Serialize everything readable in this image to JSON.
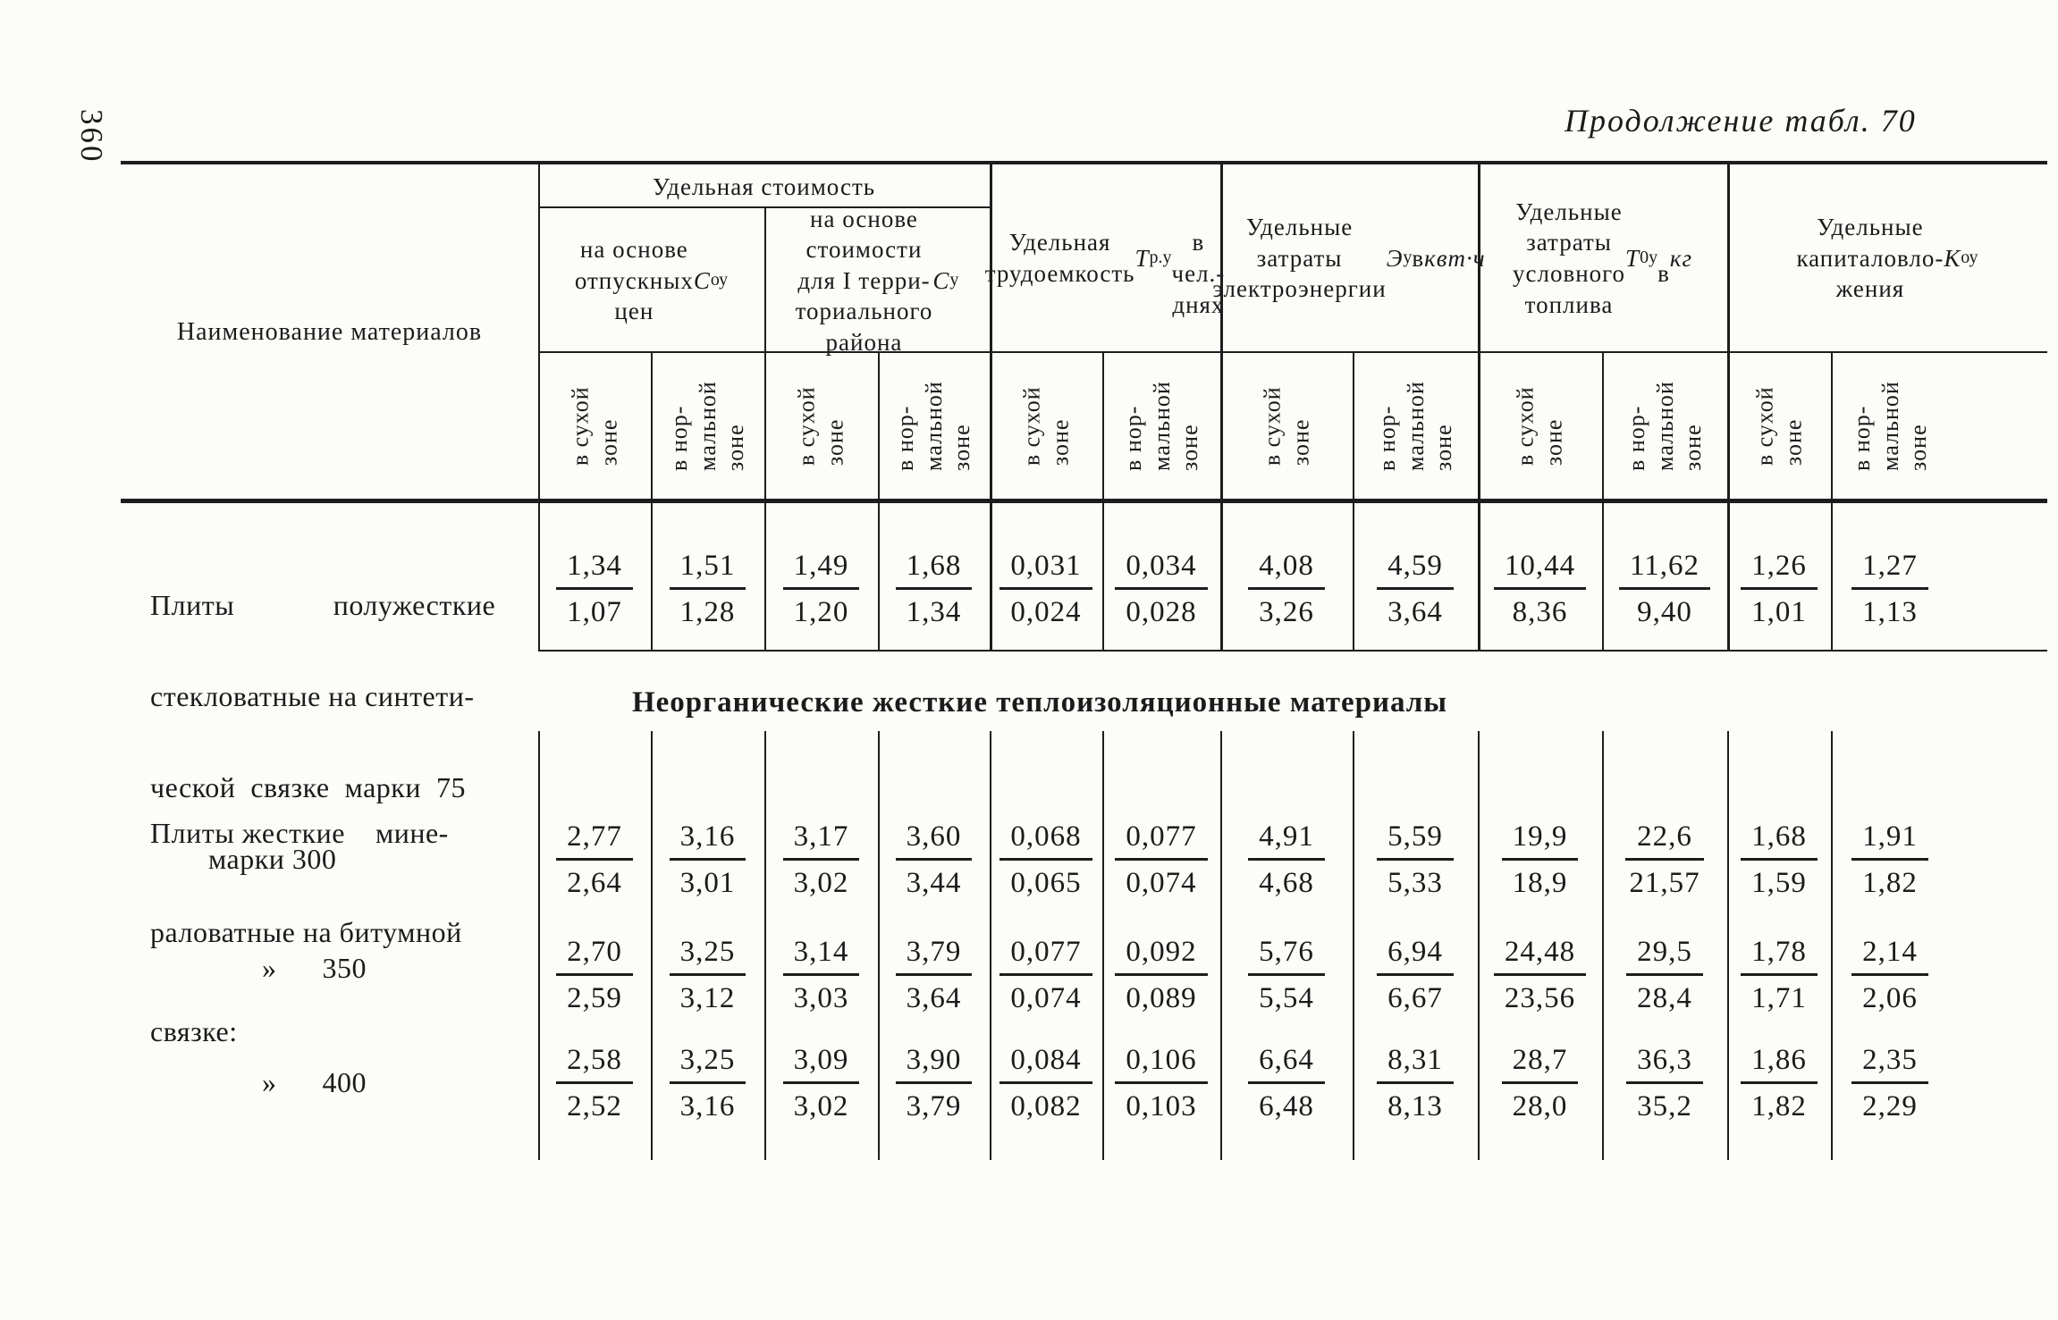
{
  "page": {
    "number": "360",
    "caption": "Продолжение табл. 70"
  },
  "header": {
    "name_col": "Наименование материалов",
    "zone_dry": "в сухой\nзоне",
    "zone_normal": "в нор-\nмальной\nзоне",
    "group1": {
      "title": "Удельная стоимость",
      "sub1_html": "на основе<br>отпускных<br>цен <i>С</i><sub>оу</sub>",
      "sub2_html": "на основе<br>стоимости<br>для I терри-<br>ториального<br>района <i>С</i><sub>у</sub>"
    },
    "group2_html": "Удельная<br>трудоемкость<br><i>Т</i><sub>р.у</sub><br>в чел.-днях",
    "group3_html": "Удельные<br>затраты<br>электроэнергии<br><i>Э</i><sub>у</sub> в <i>квт·ч</i>",
    "group4_html": "Удельные<br>затраты<br>условного<br>топлива <i>Т</i><sub>0у</sub><br>в <i>кг</i>",
    "group5_html": "Удельные<br>капиталовло-<br>жения <i>К</i><sub>оу</sub>"
  },
  "section_title": "Неорганические жесткие теплоизоляционные материалы",
  "labels": {
    "row75_lines": [
      "Плиты             полужесткие",
      "стекловатные на синтети-",
      "ческой  связке  марки  75"
    ],
    "group_lines": [
      "Плиты жесткие    мине-",
      "раловатные на битумной",
      "связке:"
    ],
    "mark300": "марки 300",
    "mark350": "»      350",
    "mark400": "»      400"
  },
  "values": {
    "row75": [
      [
        "1,34",
        "1,07"
      ],
      [
        "1,51",
        "1,28"
      ],
      [
        "1,49",
        "1,20"
      ],
      [
        "1,68",
        "1,34"
      ],
      [
        "0,031",
        "0,024"
      ],
      [
        "0,034",
        "0,028"
      ],
      [
        "4,08",
        "3,26"
      ],
      [
        "4,59",
        "3,64"
      ],
      [
        "10,44",
        "8,36"
      ],
      [
        "11,62",
        "9,40"
      ],
      [
        "1,26",
        "1,01"
      ],
      [
        "1,27",
        "1,13"
      ]
    ],
    "row300": [
      [
        "2,77",
        "2,64"
      ],
      [
        "3,16",
        "3,01"
      ],
      [
        "3,17",
        "3,02"
      ],
      [
        "3,60",
        "3,44"
      ],
      [
        "0,068",
        "0,065"
      ],
      [
        "0,077",
        "0,074"
      ],
      [
        "4,91",
        "4,68"
      ],
      [
        "5,59",
        "5,33"
      ],
      [
        "19,9",
        "18,9"
      ],
      [
        "22,6",
        "21,57"
      ],
      [
        "1,68",
        "1,59"
      ],
      [
        "1,91",
        "1,82"
      ]
    ],
    "row350": [
      [
        "2,70",
        "2,59"
      ],
      [
        "3,25",
        "3,12"
      ],
      [
        "3,14",
        "3,03"
      ],
      [
        "3,79",
        "3,64"
      ],
      [
        "0,077",
        "0,074"
      ],
      [
        "0,092",
        "0,089"
      ],
      [
        "5,76",
        "5,54"
      ],
      [
        "6,94",
        "6,67"
      ],
      [
        "24,48",
        "23,56"
      ],
      [
        "29,5",
        "28,4"
      ],
      [
        "1,78",
        "1,71"
      ],
      [
        "2,14",
        "2,06"
      ]
    ],
    "row400": [
      [
        "2,58",
        "2,52"
      ],
      [
        "3,25",
        "3,16"
      ],
      [
        "3,09",
        "3,02"
      ],
      [
        "3,90",
        "3,79"
      ],
      [
        "0,084",
        "0,082"
      ],
      [
        "0,106",
        "0,103"
      ],
      [
        "6,64",
        "6,48"
      ],
      [
        "8,31",
        "8,13"
      ],
      [
        "28,7",
        "28,0"
      ],
      [
        "36,3",
        "35,2"
      ],
      [
        "1,86",
        "1,82"
      ],
      [
        "2,35",
        "2,29"
      ]
    ]
  }
}
